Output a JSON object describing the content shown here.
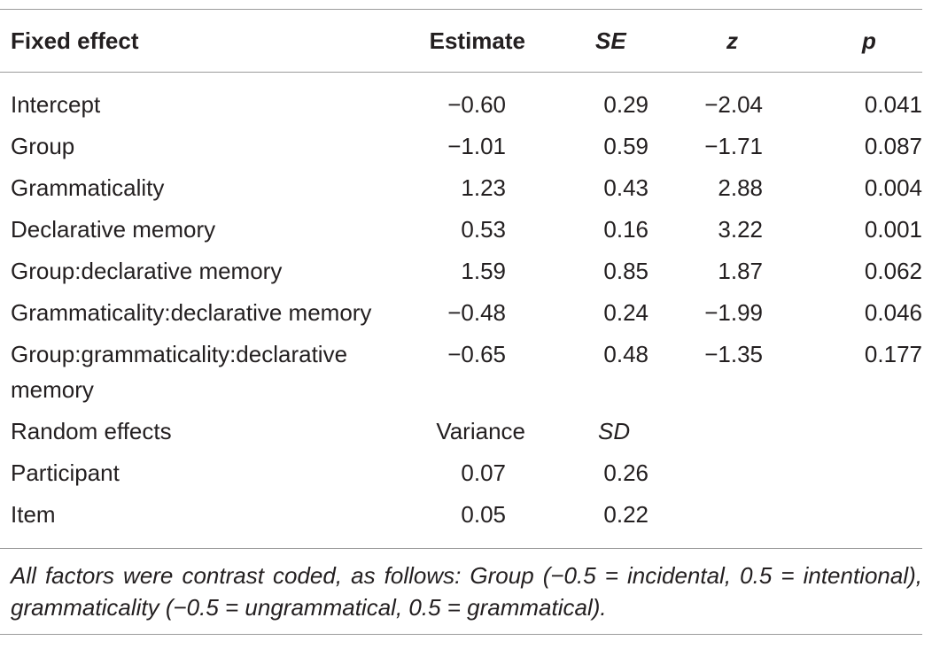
{
  "table": {
    "headers": {
      "fixed_effect": "Fixed effect",
      "estimate": "Estimate",
      "se": "SE",
      "z": "z",
      "p": "p"
    },
    "fixed_rows": [
      {
        "label": "Intercept",
        "estimate": "−0.60",
        "se": "0.29",
        "z": "−2.04",
        "p": "0.041"
      },
      {
        "label": "Group",
        "estimate": "−1.01",
        "se": "0.59",
        "z": "−1.71",
        "p": "0.087"
      },
      {
        "label": "Grammaticality",
        "estimate": "1.23",
        "se": "0.43",
        "z": "2.88",
        "p": "0.004"
      },
      {
        "label": "Declarative memory",
        "estimate": "0.53",
        "se": "0.16",
        "z": "3.22",
        "p": "0.001"
      },
      {
        "label": "Group:declarative memory",
        "estimate": "1.59",
        "se": "0.85",
        "z": "1.87",
        "p": "0.062"
      },
      {
        "label": "Grammaticality:declarative memory",
        "estimate": "−0.48",
        "se": "0.24",
        "z": "−1.99",
        "p": "0.046"
      },
      {
        "label": "Group:grammaticality:declarative memory",
        "estimate": "−0.65",
        "se": "0.48",
        "z": "−1.35",
        "p": "0.177"
      }
    ],
    "random_header": {
      "label": "Random effects",
      "variance": "Variance",
      "sd": "SD"
    },
    "random_rows": [
      {
        "label": "Participant",
        "variance": "0.07",
        "sd": "0.26"
      },
      {
        "label": "Item",
        "variance": "0.05",
        "sd": "0.22"
      }
    ],
    "footnote": "All factors were contrast coded, as follows: Group (−0.5 = incidental, 0.5 = intentional), grammaticality (−0.5 = ungrammatical, 0.5 = grammatical)."
  }
}
